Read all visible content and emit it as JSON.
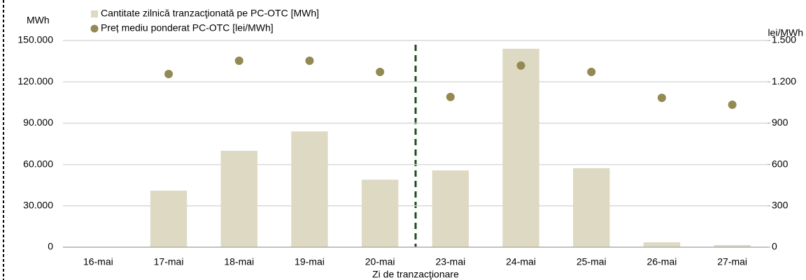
{
  "chart_data": {
    "type": "bar",
    "y_label": "MWh",
    "y2_label": "lei/MWh",
    "x_label": "Zi de tranzacţionare",
    "categories": [
      "16-mai",
      "17-mai",
      "18-mai",
      "19-mai",
      "20-mai",
      "23-mai",
      "24-mai",
      "25-mai",
      "26-mai",
      "27-mai"
    ],
    "series": [
      {
        "name": "Cantitate zilnică tranzacţionată pe PC-OTC [MWh]",
        "color": "#ddd9c3",
        "type": "bar",
        "values": [
          0,
          41000,
          70000,
          84000,
          49000,
          55700,
          144000,
          57300,
          3500,
          1500
        ]
      },
      {
        "name": "Preț mediu ponderat PC-OTC [lei/MWh]",
        "color": "#938953",
        "type": "scatter",
        "axis": "y2",
        "values": [
          null,
          1257,
          1353,
          1353,
          1272,
          1090,
          1318,
          1272,
          1084,
          1034
        ]
      }
    ],
    "ylim": [
      0,
      150000
    ],
    "yticks": [
      0,
      {
        "value": 30000,
        "label": "30.000"
      },
      {
        "value": 60000,
        "label": "60.000"
      },
      {
        "value": 90000,
        "label": "90.000"
      },
      {
        "value": 120000,
        "label": "120.000"
      },
      {
        "value": 150000,
        "label": "150.000"
      }
    ],
    "y2lim": [
      0,
      1500
    ],
    "y2ticks": [
      0,
      300,
      600,
      900,
      {
        "value": 1200,
        "label": "1.200"
      },
      {
        "value": 1500,
        "label": "1.500"
      }
    ],
    "grid": true
  }
}
